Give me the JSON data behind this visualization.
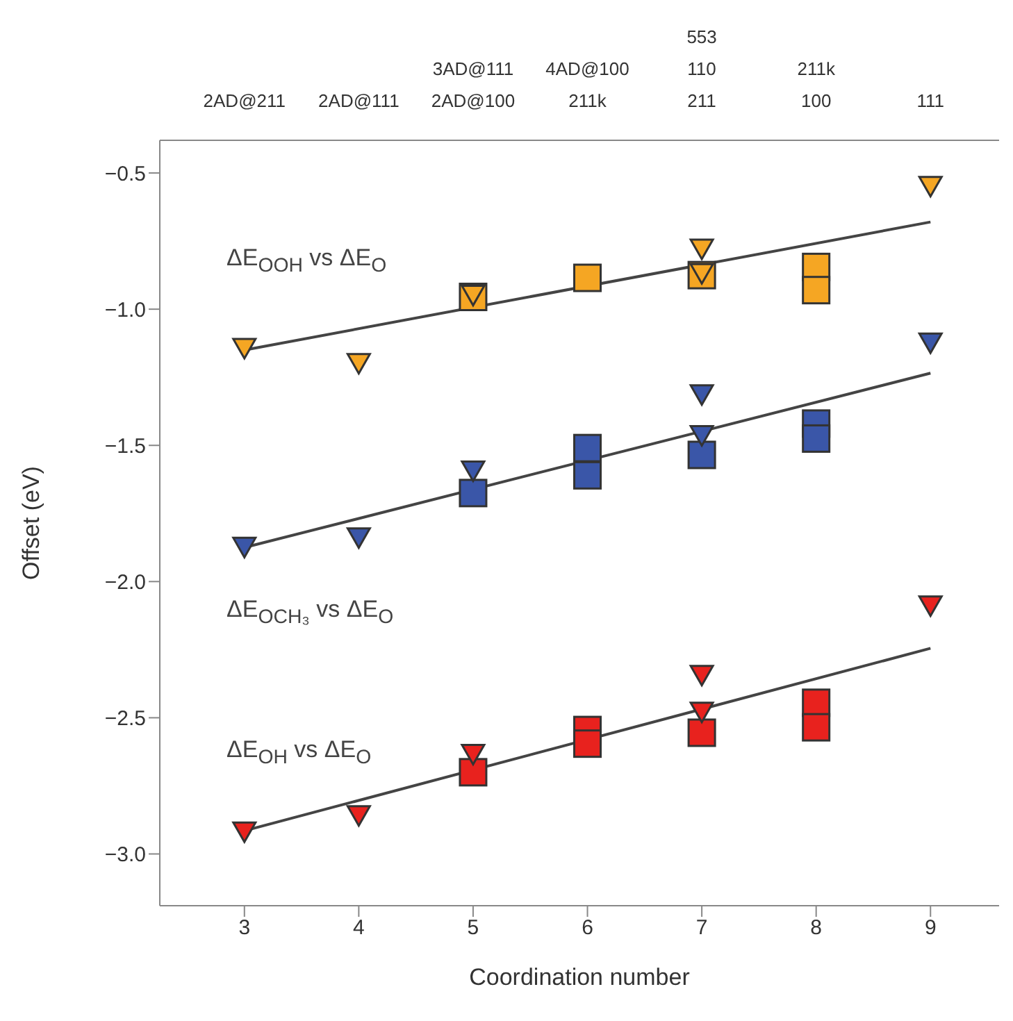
{
  "chart_data": {
    "type": "scatter",
    "xlabel": "Coordination number",
    "ylabel": "Offset (eV)",
    "xlim": [
      2.26,
      9.6
    ],
    "xticks": [
      3,
      4,
      5,
      6,
      7,
      8,
      9
    ],
    "ylim": [
      -3.19,
      -0.38
    ],
    "yticks": [
      {
        "value": -0.5,
        "label": "−0.5"
      },
      {
        "value": -1.0,
        "label": "−1.0"
      },
      {
        "value": -1.5,
        "label": "−1.5"
      },
      {
        "value": -2.0,
        "label": "−2.0"
      },
      {
        "value": -2.5,
        "label": "−2.5"
      },
      {
        "value": -3.0,
        "label": "−3.0"
      }
    ],
    "series": [
      {
        "type": "line",
        "color": "#444444",
        "marker": "none",
        "x": [
          3,
          9
        ],
        "values": [
          -1.15,
          -0.68
        ]
      },
      {
        "type": "line",
        "color": "#444444",
        "marker": "none",
        "x": [
          3,
          9
        ],
        "values": [
          -1.875,
          -1.235
        ]
      },
      {
        "type": "line",
        "color": "#444444",
        "marker": "none",
        "x": [
          3,
          9
        ],
        "values": [
          -2.915,
          -2.245
        ]
      },
      {
        "color": "#f5a623",
        "marker": "square",
        "x": [
          5,
          6,
          7,
          8,
          8
        ],
        "values": [
          -0.955,
          -0.885,
          -0.875,
          -0.845,
          -0.93
        ]
      },
      {
        "color": "#f5a623",
        "marker": "triangle",
        "x": [
          3,
          4,
          5,
          7,
          7,
          9
        ],
        "values": [
          -1.135,
          -1.19,
          -0.94,
          -0.77,
          -0.86,
          -0.54
        ]
      },
      {
        "color": "#3a56a8",
        "marker": "square",
        "x": [
          5,
          6,
          6,
          7,
          8,
          8
        ],
        "values": [
          -1.675,
          -1.51,
          -1.61,
          -1.535,
          -1.42,
          -1.475
        ]
      },
      {
        "color": "#3a56a8",
        "marker": "triangle",
        "x": [
          3,
          4,
          5,
          7,
          7,
          9
        ],
        "values": [
          -1.865,
          -1.83,
          -1.585,
          -1.305,
          -1.455,
          -1.115
        ]
      },
      {
        "color": "#e8221e",
        "marker": "square",
        "x": [
          5,
          6,
          6,
          7,
          8,
          8
        ],
        "values": [
          -2.7,
          -2.545,
          -2.595,
          -2.555,
          -2.445,
          -2.535
        ]
      },
      {
        "color": "#e8221e",
        "marker": "triangle",
        "x": [
          3,
          4,
          5,
          7,
          7,
          9
        ],
        "values": [
          -2.91,
          -2.85,
          -2.625,
          -2.335,
          -2.47,
          -2.08
        ]
      }
    ],
    "annotations": [
      "2AD@211",
      "2AD@111",
      "3AD@111\n2AD@100",
      "4AD@100\n211k",
      "553\n110\n211",
      "211k\n100",
      "111",
      "ΔE$_{OOH}$ vs ΔE$_{O}$",
      "ΔE$_{OCH₃}$ vs ΔE$_{O}$",
      "ΔE$_{OH}$ vs ΔE$_{O}$"
    ]
  }
}
